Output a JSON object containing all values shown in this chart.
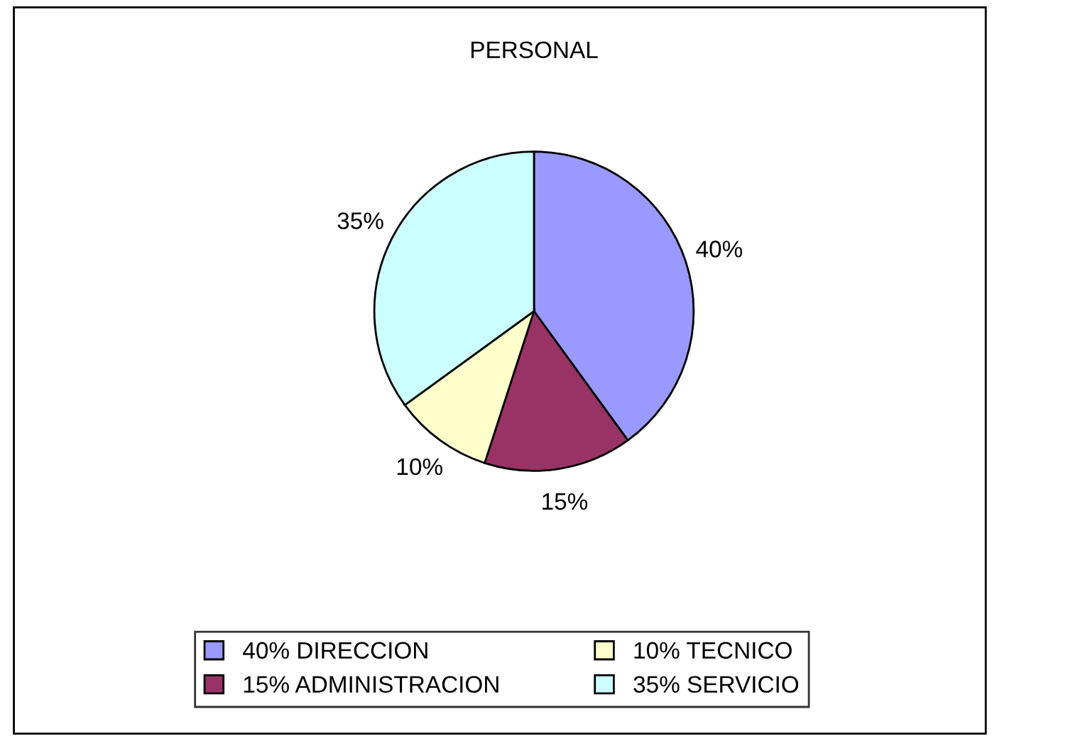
{
  "chart_data": {
    "type": "pie",
    "title": "PERSONAL",
    "categories": [
      "40% DIRECCION",
      "15% ADMINISTRACION",
      "10% TECNICO",
      "35% SERVICIO"
    ],
    "values": [
      40,
      15,
      10,
      35
    ],
    "value_labels": [
      "40%",
      "15%",
      "10%",
      "35%"
    ],
    "colors": [
      "#9999ff",
      "#993366",
      "#ffffcc",
      "#ccffff"
    ],
    "legend": "bottom"
  }
}
